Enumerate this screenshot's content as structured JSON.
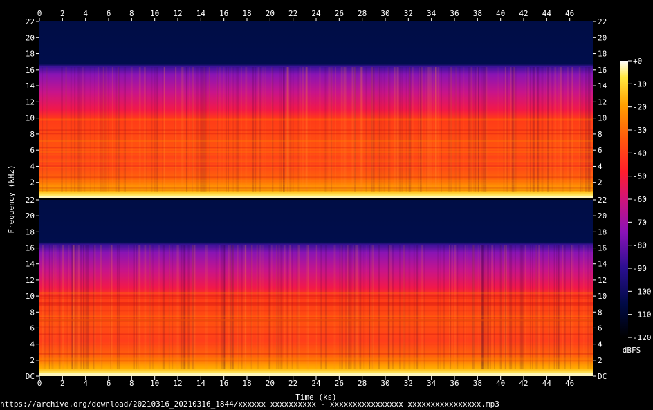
{
  "chart_data": {
    "type": "heatmap",
    "xlabel": "Time (ks)",
    "ylabel": "Frequency (kHz)",
    "x_ticks": [
      "0",
      "2",
      "4",
      "6",
      "8",
      "10",
      "12",
      "14",
      "16",
      "18",
      "20",
      "22",
      "24",
      "26",
      "28",
      "30",
      "32",
      "34",
      "36",
      "38",
      "40",
      "42",
      "44",
      "46"
    ],
    "xlim": [
      0,
      48
    ],
    "channels": [
      {
        "ylim": [
          0,
          22
        ],
        "y_ticks": [
          "2",
          "4",
          "6",
          "8",
          "10",
          "12",
          "14",
          "16",
          "18",
          "20",
          "22"
        ]
      },
      {
        "ylim": [
          0,
          22
        ],
        "y_ticks": [
          "DC",
          "2",
          "4",
          "6",
          "8",
          "10",
          "12",
          "14",
          "16",
          "18",
          "20",
          "22"
        ]
      }
    ],
    "lowpass_cutoff_khz": 16.5,
    "colorbar": {
      "label": "dBFS",
      "range": [
        -120,
        0
      ],
      "ticks": [
        "+0",
        "-10",
        "-20",
        "-30",
        "-40",
        "-50",
        "-60",
        "-70",
        "-80",
        "-90",
        "-100",
        "-110",
        "-120"
      ]
    }
  },
  "source_text": "https://archive.org/download/20210316_20210316_1844/xxxxxx xxxxxxxxxx - xxxxxxxxxxxxxxxx xxxxxxxxxxxxxxxx.mp3"
}
